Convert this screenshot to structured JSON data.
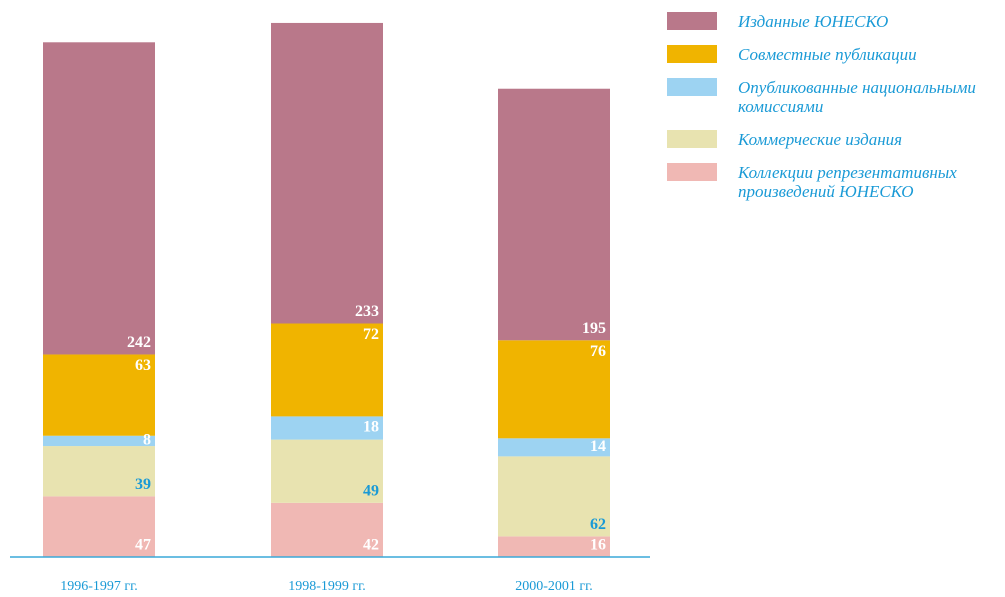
{
  "chart_data": {
    "type": "stacked_bar",
    "categories": [
      "1996-1997 гг.",
      "1998-1999 гг.",
      "2000-2001 гг."
    ],
    "series": [
      {
        "name": "Изданные ЮНЕСКО",
        "color": "#b9788a",
        "label_color": "#ffffff",
        "values": [
          242,
          233,
          195
        ]
      },
      {
        "name": "Совместные публикации",
        "color": "#f0b400",
        "label_color": "#ffffff",
        "values": [
          63,
          72,
          76
        ]
      },
      {
        "name": "Опубликованные национальными комиссиями",
        "color": "#9dd3f2",
        "label_color": "#ffffff",
        "values": [
          8,
          18,
          14
        ]
      },
      {
        "name": "Коммерческие издания",
        "color": "#e8e3b0",
        "label_color": "#1a9ad6",
        "values": [
          39,
          49,
          62
        ]
      },
      {
        "name": "Коллекции репрезентативных произведений ЮНЕСКО",
        "color": "#f0b8b4",
        "label_color": "#ffffff",
        "values": [
          47,
          42,
          16
        ]
      }
    ]
  }
}
